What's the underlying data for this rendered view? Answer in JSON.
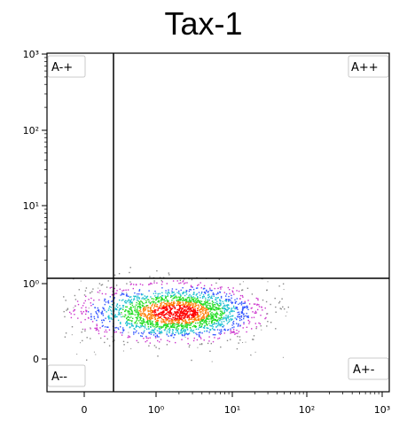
{
  "title": "Tax-1",
  "chart_data": {
    "type": "scatter",
    "title": "Tax-1",
    "xlabel": "",
    "ylabel": "",
    "scale": "biexponential (log decades with linear zero)",
    "x_ticks": [
      "0",
      "10⁰",
      "10¹",
      "10²",
      "10³"
    ],
    "y_ticks": [
      "0",
      "10⁰",
      "10¹",
      "10²",
      "10³"
    ],
    "quadrant_labels": [
      "A-+",
      "A++",
      "A--",
      "A+-"
    ],
    "quadrant_gate": {
      "x": 0.28,
      "y": 1.2
    },
    "population": {
      "center": {
        "x": 2.5,
        "y": 0.4
      },
      "density_colors": [
        "#ff0000",
        "#ff7a00",
        "#22dd22",
        "#1ec0d0",
        "#3355ff",
        "#cc33cc",
        "#888888"
      ]
    },
    "grid": false,
    "legend": "none"
  }
}
